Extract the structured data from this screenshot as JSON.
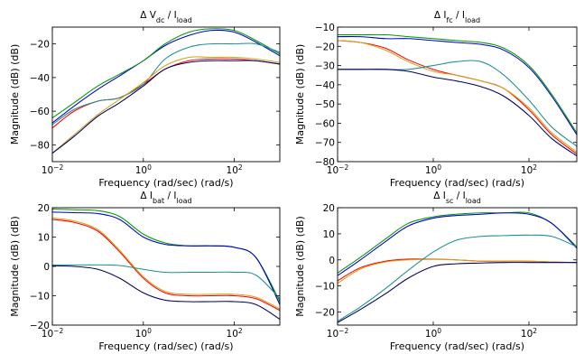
{
  "colors": {
    "blue": "#0000cc",
    "green": "#009900",
    "red": "#ff0000",
    "teal": "#209090",
    "orange": "#d4a017",
    "navy": "#000060"
  },
  "chart_data": [
    {
      "type": "line",
      "title_prefix": "Δ V",
      "title_sub": "dc",
      "title_mid": " / I",
      "title_sub2": "load",
      "xlabel": "Frequency (rad/sec)  (rad/s)",
      "ylabel": "Magnitude (dB) (dB)",
      "xscale": "log",
      "xlim": [
        0.01,
        1000
      ],
      "ylim": [
        -90,
        -10
      ],
      "yticks": [
        -80,
        -60,
        -40,
        -20
      ],
      "xticks": [
        {
          "v": 0.01,
          "b": "10",
          "e": "−2"
        },
        {
          "v": 1,
          "b": "10",
          "e": "0"
        },
        {
          "v": 100,
          "b": "10",
          "e": "2"
        }
      ],
      "series": [
        {
          "color": "blue",
          "x": [
            0.01,
            0.03,
            0.1,
            0.3,
            1,
            3,
            10,
            30,
            100,
            300,
            1000
          ],
          "y": [
            -67,
            -57,
            -47,
            -39,
            -30,
            -21,
            -15,
            -12,
            -13,
            -19,
            -27
          ]
        },
        {
          "color": "green",
          "x": [
            0.01,
            0.03,
            0.1,
            0.3,
            1,
            3,
            10,
            30,
            100,
            300,
            1000
          ],
          "y": [
            -64,
            -55,
            -45,
            -38,
            -30,
            -20,
            -13,
            -11,
            -12,
            -18,
            -26
          ]
        },
        {
          "color": "red",
          "x": [
            0.01,
            0.03,
            0.1,
            0.3,
            1,
            3,
            10,
            30,
            100,
            300,
            1000
          ],
          "y": [
            -70,
            -60,
            -54,
            -52,
            -44,
            -35,
            -30,
            -29,
            -29,
            -30,
            -32
          ]
        },
        {
          "color": "teal",
          "x": [
            0.01,
            0.03,
            0.1,
            0.3,
            1,
            3,
            10,
            30,
            100,
            300,
            1000
          ],
          "y": [
            -68,
            -59,
            -54,
            -52,
            -44,
            -29,
            -22,
            -20,
            -20,
            -20,
            -25
          ]
        },
        {
          "color": "orange",
          "x": [
            0.01,
            0.03,
            0.1,
            0.3,
            1,
            3,
            10,
            30,
            100,
            300,
            1000
          ],
          "y": [
            -85,
            -74,
            -62,
            -53,
            -43,
            -33,
            -28,
            -28,
            -28,
            -29,
            -31
          ]
        },
        {
          "color": "navy",
          "x": [
            0.01,
            0.03,
            0.1,
            0.3,
            1,
            3,
            10,
            30,
            100,
            300,
            1000
          ],
          "y": [
            -85,
            -75,
            -63,
            -55,
            -45,
            -35,
            -31,
            -30,
            -30,
            -30,
            -32
          ]
        }
      ]
    },
    {
      "type": "line",
      "title_prefix": "Δ I",
      "title_sub": "fc",
      "title_mid": " / I",
      "title_sub2": "load",
      "xlabel": "Frequency (rad/sec)  (rad/s)",
      "ylabel": "Magnitude (dB) (dB)",
      "xscale": "log",
      "xlim": [
        0.01,
        1000
      ],
      "ylim": [
        -80,
        -10
      ],
      "yticks": [
        -80,
        -70,
        -60,
        -50,
        -40,
        -30,
        -20,
        -10
      ],
      "xticks": [
        {
          "v": 0.01,
          "b": "10",
          "e": "−2"
        },
        {
          "v": 1,
          "b": "10",
          "e": "0"
        },
        {
          "v": 100,
          "b": "10",
          "e": "2"
        }
      ],
      "series": [
        {
          "color": "green",
          "x": [
            0.01,
            0.03,
            0.1,
            0.3,
            1,
            3,
            10,
            30,
            100,
            300,
            1000
          ],
          "y": [
            -14,
            -14,
            -14,
            -15,
            -16,
            -17,
            -18,
            -21,
            -30,
            -45,
            -65
          ]
        },
        {
          "color": "blue",
          "x": [
            0.01,
            0.03,
            0.1,
            0.3,
            1,
            3,
            10,
            30,
            100,
            300,
            1000
          ],
          "y": [
            -15,
            -15,
            -16,
            -16,
            -17,
            -18,
            -19,
            -22,
            -31,
            -46,
            -66
          ]
        },
        {
          "color": "red",
          "x": [
            0.01,
            0.03,
            0.1,
            0.3,
            1,
            3,
            10,
            30,
            100,
            300,
            1000
          ],
          "y": [
            -17,
            -18,
            -21,
            -27,
            -32,
            -35,
            -38,
            -42,
            -53,
            -66,
            -76
          ]
        },
        {
          "color": "orange",
          "x": [
            0.01,
            0.03,
            0.1,
            0.3,
            1,
            3,
            10,
            30,
            100,
            300,
            1000
          ],
          "y": [
            -17,
            -18,
            -22,
            -28,
            -33,
            -35,
            -38,
            -42,
            -52,
            -65,
            -75
          ]
        },
        {
          "color": "teal",
          "x": [
            0.01,
            0.03,
            0.1,
            0.3,
            1,
            3,
            10,
            30,
            100,
            300,
            1000
          ],
          "y": [
            -32,
            -32,
            -32,
            -32,
            -30,
            -28,
            -28,
            -35,
            -48,
            -62,
            -72
          ]
        },
        {
          "color": "navy",
          "x": [
            0.01,
            0.03,
            0.1,
            0.3,
            1,
            3,
            10,
            30,
            100,
            300,
            1000
          ],
          "y": [
            -32,
            -32,
            -32,
            -33,
            -36,
            -38,
            -41,
            -46,
            -56,
            -68,
            -77
          ]
        }
      ]
    },
    {
      "type": "line",
      "title_prefix": "Δ I",
      "title_sub": "bat",
      "title_mid": " / I",
      "title_sub2": "load",
      "xlabel": "Frequency (rad/sec)  (rad/s)",
      "ylabel": "Magnitude (dB) (dB)",
      "xscale": "log",
      "xlim": [
        0.01,
        1000
      ],
      "ylim": [
        -20,
        20
      ],
      "yticks": [
        -20,
        -10,
        0,
        10,
        20
      ],
      "xticks": [
        {
          "v": 0.01,
          "b": "10",
          "e": "−2"
        },
        {
          "v": 1,
          "b": "10",
          "e": "0"
        },
        {
          "v": 100,
          "b": "10",
          "e": "2"
        }
      ],
      "series": [
        {
          "color": "green",
          "x": [
            0.01,
            0.03,
            0.1,
            0.3,
            1,
            3,
            10,
            30,
            100,
            300,
            1000
          ],
          "y": [
            19.5,
            19.3,
            19,
            17,
            11,
            8,
            7,
            7,
            6.5,
            3,
            -12
          ]
        },
        {
          "color": "blue",
          "x": [
            0.01,
            0.03,
            0.1,
            0.3,
            1,
            3,
            10,
            30,
            100,
            300,
            1000
          ],
          "y": [
            18.5,
            18.3,
            18,
            16,
            10,
            7.5,
            7,
            7,
            6.5,
            3,
            -13
          ]
        },
        {
          "color": "red",
          "x": [
            0.01,
            0.03,
            0.1,
            0.3,
            1,
            3,
            10,
            30,
            100,
            300,
            1000
          ],
          "y": [
            16,
            15,
            12,
            5,
            -4,
            -9,
            -10,
            -10,
            -10,
            -11,
            -15
          ]
        },
        {
          "color": "orange",
          "x": [
            0.01,
            0.03,
            0.1,
            0.3,
            1,
            3,
            10,
            30,
            100,
            300,
            1000
          ],
          "y": [
            16.5,
            15.5,
            12.5,
            5.5,
            -3.5,
            -8.5,
            -9.5,
            -9.5,
            -9.5,
            -10.5,
            -14.5
          ]
        },
        {
          "color": "teal",
          "x": [
            0.01,
            0.03,
            0.1,
            0.3,
            1,
            3,
            10,
            30,
            100,
            300,
            1000
          ],
          "y": [
            0.5,
            0.5,
            0.5,
            0.3,
            -1,
            -2,
            -2,
            -2,
            -2,
            -3,
            -11
          ]
        },
        {
          "color": "navy",
          "x": [
            0.01,
            0.03,
            0.1,
            0.3,
            1,
            3,
            10,
            30,
            100,
            300,
            1000
          ],
          "y": [
            0.2,
            0,
            -1,
            -4,
            -9,
            -11.5,
            -12,
            -12,
            -12,
            -13,
            -18
          ]
        }
      ]
    },
    {
      "type": "line",
      "title_prefix": "Δ I",
      "title_sub": "sc",
      "title_mid": " / I",
      "title_sub2": "load",
      "xlabel": "Frequency (rad/sec)  (rad/s)",
      "ylabel": "Magnitude (dB) (dB)",
      "xscale": "log",
      "xlim": [
        0.01,
        1000
      ],
      "ylim": [
        -25,
        20
      ],
      "yticks": [
        -20,
        -10,
        0,
        10,
        20
      ],
      "xticks": [
        {
          "v": 0.01,
          "b": "10",
          "e": "−2"
        },
        {
          "v": 1,
          "b": "10",
          "e": "0"
        },
        {
          "v": 100,
          "b": "10",
          "e": "2"
        }
      ],
      "series": [
        {
          "color": "green",
          "x": [
            0.01,
            0.03,
            0.1,
            0.3,
            1,
            3,
            10,
            30,
            100,
            300,
            1000
          ],
          "y": [
            -5,
            1,
            8,
            14,
            16.5,
            17.5,
            18,
            18,
            18,
            14,
            5
          ]
        },
        {
          "color": "blue",
          "x": [
            0.01,
            0.03,
            0.1,
            0.3,
            1,
            3,
            10,
            30,
            100,
            300,
            1000
          ],
          "y": [
            -6,
            0,
            7,
            13,
            16,
            17,
            17.5,
            18,
            17.5,
            14,
            4.5
          ]
        },
        {
          "color": "red",
          "x": [
            0.01,
            0.03,
            0.1,
            0.3,
            1,
            3,
            10,
            30,
            100,
            300,
            1000
          ],
          "y": [
            -8,
            -3,
            -0.5,
            0.3,
            0.3,
            0,
            -0.5,
            -0.5,
            -0.5,
            -0.8,
            -1
          ]
        },
        {
          "color": "orange",
          "x": [
            0.01,
            0.03,
            0.1,
            0.3,
            1,
            3,
            10,
            30,
            100,
            300,
            1000
          ],
          "y": [
            -9,
            -3.5,
            -0.8,
            0,
            0.2,
            0,
            -0.5,
            -0.5,
            -0.5,
            -0.8,
            -1
          ]
        },
        {
          "color": "teal",
          "x": [
            0.01,
            0.03,
            0.1,
            0.3,
            1,
            3,
            10,
            30,
            100,
            300,
            1000
          ],
          "y": [
            -23.5,
            -18,
            -11,
            -4,
            3,
            7.5,
            9,
            9.3,
            9.5,
            9,
            5
          ]
        },
        {
          "color": "navy",
          "x": [
            0.01,
            0.03,
            0.1,
            0.3,
            1,
            3,
            10,
            30,
            100,
            300,
            1000
          ],
          "y": [
            -24,
            -19,
            -13,
            -7,
            -2.5,
            -1.5,
            -1.2,
            -1,
            -1,
            -1,
            -1
          ]
        }
      ]
    }
  ]
}
